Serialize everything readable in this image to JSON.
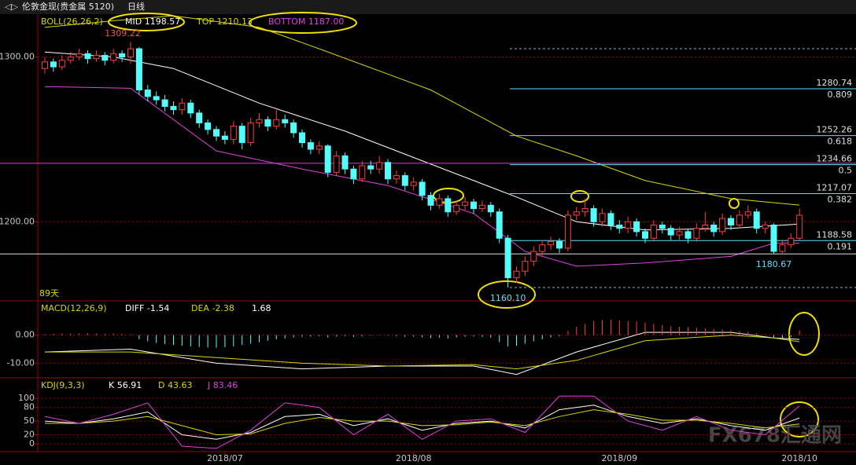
{
  "header": {
    "title": "伦敦金现(贵金属 5120)",
    "period": "日线"
  },
  "chart_data": [
    {
      "type": "candlestick",
      "name": "BOLL(26,26,2)",
      "legend": [
        "MID 1198.57",
        "TOP 1210.13",
        "BOTTOM 1187.00"
      ],
      "span_label": "89天",
      "open": [
        1293,
        1297,
        1294,
        1298,
        1300,
        1302,
        1299,
        1301,
        1298,
        1302,
        1300,
        1305,
        1280,
        1276,
        1274,
        1270,
        1268,
        1272,
        1266,
        1260,
        1256,
        1252,
        1250,
        1258,
        1248,
        1260,
        1262,
        1258,
        1262,
        1260,
        1254,
        1248,
        1244,
        1246,
        1230,
        1240,
        1232,
        1226,
        1234,
        1232,
        1236,
        1226,
        1228,
        1222,
        1224,
        1216,
        1210,
        1214,
        1206,
        1210,
        1212,
        1208,
        1210,
        1206,
        1190,
        1166,
        1170,
        1176,
        1182,
        1186,
        1188,
        1184,
        1204,
        1206,
        1208,
        1200,
        1205,
        1198,
        1196,
        1200,
        1194,
        1190,
        1198,
        1196,
        1192,
        1194,
        1190,
        1196,
        1198,
        1194,
        1202,
        1198,
        1204,
        1206,
        1196,
        1198,
        1182,
        1186,
        1190
      ],
      "high": [
        1300,
        1299,
        1301,
        1303,
        1305,
        1304,
        1304,
        1303,
        1305,
        1304,
        1309.22,
        1306,
        1283,
        1279,
        1277,
        1273,
        1275,
        1274,
        1268,
        1262,
        1258,
        1255,
        1261,
        1260,
        1263,
        1266,
        1264,
        1268,
        1265,
        1262,
        1256,
        1250,
        1249,
        1247,
        1243,
        1242,
        1234,
        1237,
        1237,
        1240,
        1238,
        1231,
        1230,
        1227,
        1226,
        1218,
        1217,
        1216,
        1213,
        1215,
        1214,
        1213,
        1212,
        1208,
        1192,
        1173,
        1179,
        1185,
        1189,
        1191,
        1190,
        1207,
        1209,
        1214,
        1210,
        1208,
        1207,
        1201,
        1203,
        1202,
        1196,
        1201,
        1200,
        1198,
        1197,
        1196,
        1199,
        1206,
        1200,
        1205,
        1204,
        1207,
        1210,
        1208,
        1200,
        1199,
        1189,
        1193,
        1208
      ],
      "low": [
        1290,
        1291,
        1292,
        1296,
        1298,
        1296,
        1297,
        1295,
        1296,
        1297,
        1296,
        1277,
        1273,
        1271,
        1267,
        1265,
        1265,
        1263,
        1257,
        1253,
        1249,
        1247,
        1247,
        1244,
        1246,
        1257,
        1255,
        1256,
        1257,
        1251,
        1245,
        1241,
        1241,
        1227,
        1228,
        1229,
        1223,
        1224,
        1229,
        1229,
        1223,
        1223,
        1219,
        1219,
        1213,
        1207,
        1208,
        1203,
        1204,
        1207,
        1205,
        1206,
        1203,
        1187,
        1160.1,
        1163,
        1167,
        1173,
        1179,
        1183,
        1181,
        1182,
        1201,
        1203,
        1197,
        1197,
        1195,
        1193,
        1193,
        1191,
        1187,
        1188,
        1193,
        1189,
        1189,
        1187,
        1188,
        1194,
        1191,
        1192,
        1195,
        1196,
        1202,
        1193,
        1193,
        1180.67,
        1181,
        1184,
        1189
      ],
      "close": [
        1297,
        1294,
        1298,
        1300,
        1302,
        1299,
        1301,
        1298,
        1302,
        1300,
        1305,
        1280,
        1276,
        1274,
        1270,
        1268,
        1272,
        1266,
        1260,
        1256,
        1252,
        1250,
        1258,
        1248,
        1260,
        1262,
        1258,
        1262,
        1260,
        1254,
        1248,
        1244,
        1246,
        1230,
        1240,
        1232,
        1226,
        1234,
        1232,
        1236,
        1226,
        1228,
        1222,
        1224,
        1216,
        1210,
        1214,
        1206,
        1210,
        1212,
        1208,
        1210,
        1206,
        1190,
        1166,
        1170,
        1176,
        1182,
        1186,
        1188,
        1184,
        1204,
        1206,
        1208,
        1200,
        1205,
        1198,
        1196,
        1200,
        1194,
        1190,
        1198,
        1196,
        1192,
        1194,
        1190,
        1196,
        1198,
        1194,
        1202,
        1198,
        1204,
        1206,
        1196,
        1198,
        1182,
        1186,
        1190,
        1204
      ],
      "up_color": "#ff3c3c",
      "down_color": "#54fcfc",
      "series": [
        {
          "name": "MID",
          "color": "#ffffff",
          "x": [
            0,
            8,
            15,
            25,
            35,
            45,
            55,
            62,
            70,
            80,
            88
          ],
          "values": [
            1303,
            1300,
            1293,
            1272,
            1255,
            1235,
            1215,
            1200,
            1195,
            1196,
            1198.57
          ]
        },
        {
          "name": "TOP",
          "color": "#d8d800",
          "x": [
            0,
            8,
            15,
            25,
            32,
            45,
            55,
            62,
            70,
            80,
            88
          ],
          "values": [
            1318,
            1322,
            1325,
            1318,
            1305,
            1280,
            1252,
            1240,
            1225,
            1214,
            1210.13
          ]
        },
        {
          "name": "BOTTOM",
          "color": "#e040e0",
          "x": [
            0,
            10,
            20,
            30,
            40,
            50,
            56,
            62,
            70,
            80,
            85,
            88
          ],
          "values": [
            1282,
            1281,
            1243,
            1232,
            1222,
            1205,
            1182,
            1173,
            1175,
            1179,
            1187,
            1187
          ]
        }
      ],
      "levels": [
        {
          "value": 1280.74,
          "ratio": 0.809
        },
        {
          "value": 1252.26,
          "ratio": 0.618
        },
        {
          "value": 1234.66,
          "ratio": 0.5
        },
        {
          "value": 1217.07,
          "ratio": 0.382
        },
        {
          "value": 1188.58,
          "ratio": 0.191
        }
      ],
      "dashed_levels": [
        1305,
        1160.1
      ],
      "hlines": [
        {
          "value": 1235.5,
          "color": "#d040d0"
        },
        {
          "value": 1180.5,
          "color": "#e0e0e0"
        }
      ],
      "high_label": {
        "index": 10,
        "text": "1309.22"
      },
      "low_labels": [
        {
          "index": 54,
          "text": "1160.10"
        },
        {
          "index": 85,
          "text": "1180.67"
        }
      ],
      "ylim": [
        1152,
        1326
      ],
      "yticks": [
        {
          "value": 1300,
          "label": "1300.00"
        },
        {
          "value": 1200,
          "label": "1200.00"
        }
      ],
      "xticks": [
        {
          "value": 21,
          "label": "2018/07"
        },
        {
          "value": 43,
          "label": "2018/08"
        },
        {
          "value": 67,
          "label": "2018/09"
        },
        {
          "value": 88,
          "label": "2018/10"
        }
      ]
    },
    {
      "type": "macd",
      "name": "MACD(12,26,9)",
      "legend": [
        "DIFF -1.54",
        "DEA -2.38",
        "1.68"
      ],
      "values": [
        0.4,
        0.5,
        0.6,
        0.5,
        0.6,
        0.7,
        0.6,
        0.5,
        0.6,
        0.5,
        0.4,
        -1.5,
        -2.2,
        -2.8,
        -3.2,
        -3.5,
        -3.8,
        -4,
        -4.2,
        -4.4,
        -4.5,
        -4.3,
        -4,
        -3.5,
        -3,
        -2.5,
        -2,
        -1.5,
        -1.2,
        -0.8,
        -0.6,
        -0.5,
        -0.4,
        -0.8,
        -0.5,
        -0.3,
        -0.6,
        -0.4,
        -0.2,
        0.2,
        -0.2,
        -0.4,
        -0.6,
        -0.5,
        -0.8,
        -1,
        -0.9,
        -1.2,
        -0.8,
        -0.6,
        -0.5,
        -0.6,
        -0.9,
        -2.5,
        -4,
        -3.8,
        -3,
        -2.2,
        -1.5,
        -0.8,
        -0.4,
        1.5,
        3,
        4,
        5,
        5.4,
        5.5,
        5.2,
        5,
        4.8,
        4.5,
        4,
        3.6,
        3.2,
        3,
        2.8,
        2.6,
        2.5,
        2.2,
        2,
        1.8,
        1.5,
        1.2,
        0.8,
        0.2,
        -0.8,
        -1,
        -0.6,
        1.68
      ],
      "up_color": "#ff3c3c",
      "down_color": "#54fcfc",
      "series": [
        {
          "name": "DIFF",
          "color": "#ffffff",
          "x": [
            0,
            10,
            20,
            30,
            40,
            50,
            55,
            62,
            70,
            80,
            85,
            88
          ],
          "values": [
            -6,
            -5,
            -10,
            -12,
            -11,
            -11,
            -14,
            -6,
            1,
            1,
            -1,
            -1.54
          ]
        },
        {
          "name": "DEA",
          "color": "#d8d800",
          "x": [
            0,
            10,
            20,
            30,
            40,
            50,
            55,
            62,
            70,
            80,
            85,
            88
          ],
          "values": [
            -6,
            -6,
            -8,
            -10,
            -11,
            -10.5,
            -12,
            -9,
            -2,
            0,
            -1,
            -2.38
          ]
        }
      ],
      "ylim": [
        -15.2,
        12.2
      ],
      "yticks": [
        {
          "value": 0,
          "label": "0.00"
        },
        {
          "value": -10,
          "label": "-10.00"
        }
      ]
    },
    {
      "type": "kdj",
      "name": "KDJ(9,3,3)",
      "legend": [
        "K 56.91",
        "D 43.63",
        "J 83.46"
      ],
      "series": [
        {
          "name": "K",
          "color": "#ffffff",
          "x": [
            0,
            4,
            8,
            12,
            16,
            20,
            24,
            28,
            32,
            36,
            40,
            44,
            48,
            52,
            56,
            60,
            64,
            68,
            72,
            76,
            80,
            84,
            88
          ],
          "values": [
            50,
            45,
            55,
            70,
            20,
            10,
            25,
            60,
            65,
            40,
            55,
            30,
            45,
            50,
            35,
            75,
            85,
            60,
            45,
            55,
            40,
            30,
            56.91
          ]
        },
        {
          "name": "D",
          "color": "#d8d800",
          "x": [
            0,
            4,
            8,
            12,
            16,
            20,
            24,
            28,
            32,
            36,
            40,
            44,
            48,
            52,
            56,
            60,
            64,
            68,
            72,
            76,
            80,
            84,
            88
          ],
          "values": [
            45,
            45,
            50,
            60,
            40,
            20,
            22,
            45,
            58,
            50,
            50,
            40,
            42,
            48,
            40,
            60,
            75,
            65,
            52,
            52,
            45,
            35,
            43.63
          ]
        },
        {
          "name": "J",
          "color": "#e040e0",
          "x": [
            0,
            4,
            8,
            12,
            16,
            20,
            24,
            28,
            32,
            36,
            40,
            44,
            48,
            52,
            56,
            60,
            64,
            68,
            72,
            76,
            80,
            84,
            88
          ],
          "values": [
            60,
            45,
            65,
            90,
            -5,
            -10,
            30,
            90,
            80,
            20,
            65,
            10,
            50,
            55,
            25,
            105,
            105,
            50,
            30,
            60,
            30,
            20,
            83.46
          ]
        }
      ],
      "ylim": [
        -17,
        145
      ],
      "yticks": [
        100,
        80,
        50,
        20,
        0
      ]
    }
  ],
  "watermark": "FX678汇通网"
}
